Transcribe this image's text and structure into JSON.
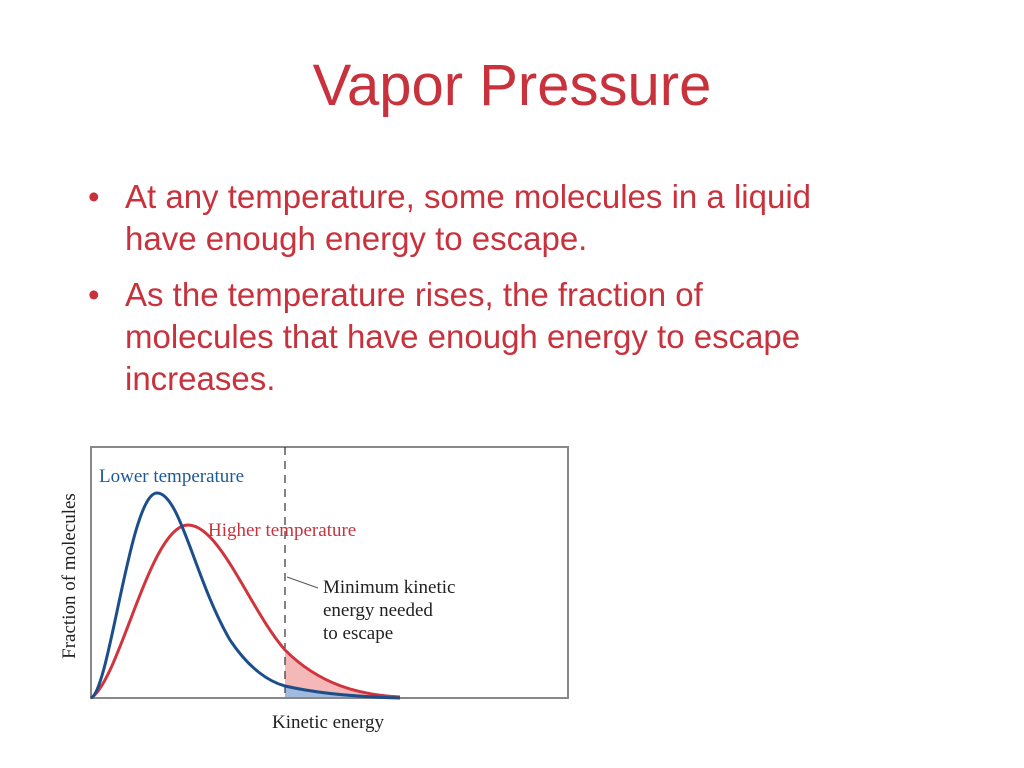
{
  "title": "Vapor Pressure",
  "bullets": [
    "At any temperature, some molecules in a liquid have enough energy to escape.",
    "As the temperature rises, the fraction of molecules that have enough energy to escape increases."
  ],
  "figure": {
    "y_axis_label": "Fraction of molecules",
    "x_axis_label": "Kinetic energy",
    "lower_label": "Lower temperature",
    "higher_label": "Higher temperature",
    "threshold_label": [
      "Minimum kinetic",
      "energy needed",
      "to escape"
    ]
  }
}
